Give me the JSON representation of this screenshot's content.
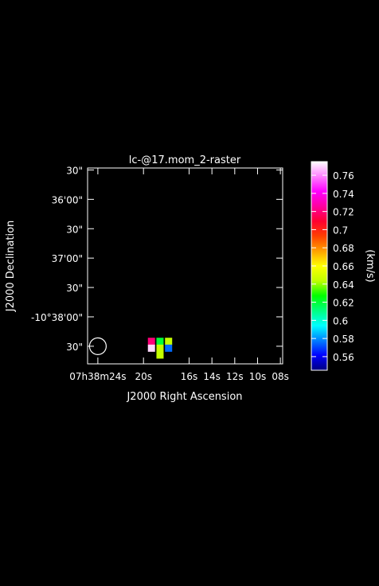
{
  "chart_data": {
    "type": "heatmap",
    "title": "lc-@17.mom_2-raster",
    "xlabel": "J2000 Right Ascension",
    "ylabel": "J2000 Declination",
    "x_ticks": [
      {
        "ra_s": 24,
        "label": "07h38m24s"
      },
      {
        "ra_s": 20,
        "label": "20s"
      },
      {
        "ra_s": 16,
        "label": "16s"
      },
      {
        "ra_s": 14,
        "label": "14s"
      },
      {
        "ra_s": 12,
        "label": "12s"
      },
      {
        "ra_s": 10,
        "label": "10s"
      },
      {
        "ra_s": 8,
        "label": "08s"
      }
    ],
    "y_ticks": [
      {
        "dec_arcsec": 2370,
        "label": "30\""
      },
      {
        "dec_arcsec": 2340,
        "label": "36'00\""
      },
      {
        "dec_arcsec": 2310,
        "label": "30\""
      },
      {
        "dec_arcsec": 2280,
        "label": "37'00\""
      },
      {
        "dec_arcsec": 2250,
        "label": "30\""
      },
      {
        "dec_arcsec": 2220,
        "label": "-10°38'00\""
      },
      {
        "dec_arcsec": 2190,
        "label": "30\""
      }
    ],
    "ra_range": [
      24.9,
      7.8
    ],
    "dec_range": [
      2372,
      2172
    ],
    "pixels": [
      {
        "ra_s": 19.3,
        "dec_arcsec": 2195,
        "value": 0.72
      },
      {
        "ra_s": 18.55,
        "dec_arcsec": 2195,
        "value": 0.62
      },
      {
        "ra_s": 17.8,
        "dec_arcsec": 2195,
        "value": 0.645
      },
      {
        "ra_s": 19.3,
        "dec_arcsec": 2188,
        "value": 0.77
      },
      {
        "ra_s": 18.55,
        "dec_arcsec": 2188,
        "value": 0.645
      },
      {
        "ra_s": 17.8,
        "dec_arcsec": 2188,
        "value": 0.575
      },
      {
        "ra_s": 18.55,
        "dec_arcsec": 2181,
        "value": 0.645
      }
    ],
    "beam": {
      "ra_s": 24.0,
      "dec_arcsec": 2190
    },
    "colorbar": {
      "label": "(km/s)",
      "range": [
        0.545,
        0.775
      ],
      "ticks": [
        0.56,
        0.58,
        0.6,
        0.62,
        0.64,
        0.66,
        0.68,
        0.7,
        0.72,
        0.74,
        0.76
      ],
      "tick_labels": [
        "0.56",
        "0.58",
        "0.6",
        "0.62",
        "0.64",
        "0.66",
        "0.68",
        "0.7",
        "0.72",
        "0.74",
        "0.76"
      ],
      "colormap": [
        "#000080",
        "#0000ff",
        "#0080ff",
        "#00ffff",
        "#00ff80",
        "#00ff00",
        "#c0ff00",
        "#ffff00",
        "#ffa000",
        "#ff4000",
        "#ff0030",
        "#ff00a0",
        "#ff00ff",
        "#ff80ff",
        "#ffffff"
      ]
    },
    "grid": false
  }
}
